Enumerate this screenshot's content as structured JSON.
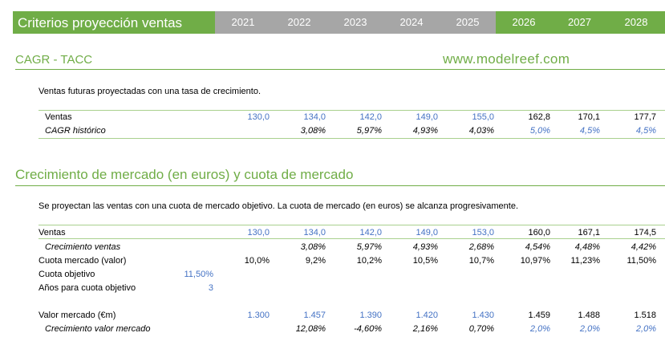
{
  "header": {
    "title": "Criterios proyección ventas",
    "years": [
      "2021",
      "2022",
      "2023",
      "2024",
      "2025",
      "2026",
      "2027",
      "2028"
    ],
    "colors": {
      "hist_bg": "#A6A6A6",
      "proj_bg": "#70AD47"
    }
  },
  "section1": {
    "title": "CAGR - TACC",
    "website": "www.modelreef.com",
    "description": "Ventas futuras proyectadas con una tasa de crecimiento.",
    "rows": [
      {
        "label": "Ventas",
        "values": [
          "130,0",
          "134,0",
          "142,0",
          "149,0",
          "155,0",
          "162,8",
          "170,1",
          "177,7"
        ]
      },
      {
        "label": "CAGR histórico",
        "values": [
          "",
          "3,08%",
          "5,97%",
          "4,93%",
          "4,03%",
          "5,0%",
          "4,5%",
          "4,5%"
        ]
      }
    ]
  },
  "section2": {
    "title": "Crecimiento de mercado (en euros) y cuota de mercado",
    "description": "Se proyectan las ventas con una cuota de mercado objetivo. La cuota de mercado (en euros) se alcanza progresivamente.",
    "rows": [
      {
        "label": "Ventas",
        "values": [
          "130,0",
          "134,0",
          "142,0",
          "149,0",
          "153,0",
          "160,0",
          "167,1",
          "174,5"
        ]
      },
      {
        "label": "Crecimiento ventas",
        "values": [
          "",
          "3,08%",
          "5,97%",
          "4,93%",
          "2,68%",
          "4,54%",
          "4,48%",
          "4,42%"
        ]
      },
      {
        "label": "Cuota mercado (valor)",
        "values": [
          "10,0%",
          "9,2%",
          "10,2%",
          "10,5%",
          "10,7%",
          "10,97%",
          "11,23%",
          "11,50%"
        ]
      },
      {
        "label": "Cuota objetivo",
        "input": "11,50%"
      },
      {
        "label": "Años para cuota objetivo",
        "input": "3"
      },
      {
        "label": "Valor mercado (€m)",
        "values": [
          "1.300",
          "1.457",
          "1.390",
          "1.420",
          "1.430",
          "1.459",
          "1.488",
          "1.518"
        ]
      },
      {
        "label": "Crecimiento valor mercado",
        "values": [
          "",
          "12,08%",
          "-4,60%",
          "2,16%",
          "0,70%",
          "2,0%",
          "2,0%",
          "2,0%"
        ]
      }
    ]
  },
  "colors": {
    "accent": "#70AD47",
    "input_blue": "#4472C4"
  }
}
